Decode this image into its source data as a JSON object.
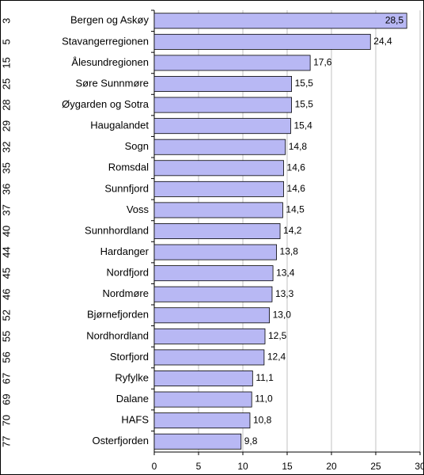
{
  "chart_data": {
    "type": "bar",
    "orientation": "horizontal",
    "ranks": [
      3,
      5,
      15,
      25,
      28,
      29,
      32,
      35,
      36,
      37,
      40,
      44,
      45,
      46,
      52,
      55,
      56,
      67,
      69,
      70,
      77
    ],
    "categories": [
      "Bergen og Askøy",
      "Stavangerregionen",
      "Ålesundregionen",
      "Søre Sunnmøre",
      "Øygarden og Sotra",
      "Haugalandet",
      "Sogn",
      "Romsdal",
      "Sunnfjord",
      "Voss",
      "Sunnhordland",
      "Hardanger",
      "Nordfjord",
      "Nordmøre",
      "Bjørnefjorden",
      "Nordhordland",
      "Storfjord",
      "Ryfylke",
      "Dalane",
      "HAFS",
      "Osterfjorden"
    ],
    "values": [
      28.5,
      24.4,
      17.6,
      15.5,
      15.5,
      15.4,
      14.8,
      14.6,
      14.6,
      14.5,
      14.2,
      13.8,
      13.4,
      13.3,
      13.0,
      12.5,
      12.4,
      11.1,
      11.0,
      10.8,
      9.8
    ],
    "value_labels": [
      "28,5",
      "24,4",
      "17,6",
      "15,5",
      "15,5",
      "15,4",
      "14,8",
      "14,6",
      "14,6",
      "14,5",
      "14,2",
      "13,8",
      "13,4",
      "13,3",
      "13,0",
      "12,5",
      "12,4",
      "11,1",
      "11,0",
      "10,8",
      "9,8"
    ],
    "color": "#b8b8f4",
    "xlim": [
      0,
      30
    ],
    "xticks": [
      0,
      5,
      10,
      15,
      20,
      25,
      30
    ],
    "grid": true
  }
}
